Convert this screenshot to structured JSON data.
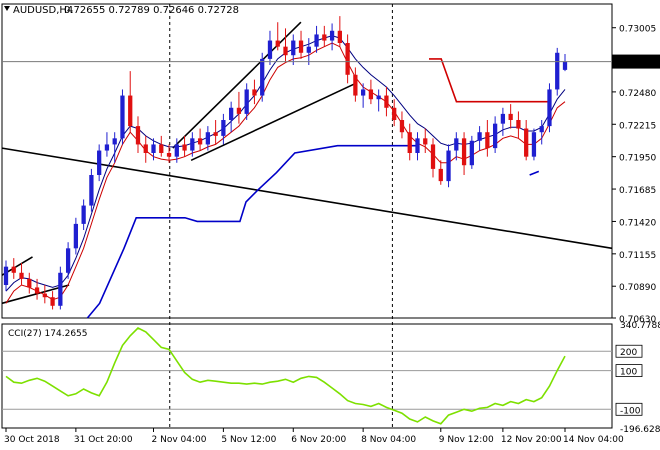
{
  "header": {
    "symbol": "AUDUSD,H4",
    "ohlc": "0.72655 0.72789 0.72646 0.72728"
  },
  "colors": {
    "bull": "#1f1fd0",
    "bear": "#e01010",
    "ma_fast": "#cc0000",
    "ma_slow": "#000080",
    "blue_line": "#0000c8",
    "red_step": "#d00000",
    "trend": "#000000",
    "cci": "#7de000",
    "price_tag_bg": "#000000",
    "price_tag_fg": "#ffffff"
  },
  "chart_data": [
    {
      "type": "candlestick",
      "ylim": [
        0.7063,
        0.7315
      ],
      "y_ticks": [
        "0.73005",
        "0.72480",
        "0.72215",
        "0.71950",
        "0.71685",
        "0.71420",
        "0.71155",
        "0.70890",
        "0.70630"
      ],
      "current_price": "0.72728",
      "current_value": 0.72728,
      "x_ticks": [
        "30 Oct 2018",
        "31 Oct 20:00",
        "2 Nov 04:00",
        "5 Nov 12:00",
        "6 Nov 20:00",
        "8 Nov 04:00",
        "9 Nov 12:00",
        "12 Nov 20:00",
        "14 Nov 04:00"
      ],
      "candles": [
        [
          0.709,
          0.711,
          0.7085,
          0.7105
        ],
        [
          0.7105,
          0.7112,
          0.7095,
          0.71
        ],
        [
          0.71,
          0.7108,
          0.709,
          0.7095
        ],
        [
          0.7095,
          0.71,
          0.7083,
          0.7088
        ],
        [
          0.7088,
          0.7095,
          0.7078,
          0.7083
        ],
        [
          0.7083,
          0.709,
          0.7075,
          0.708
        ],
        [
          0.708,
          0.7085,
          0.707,
          0.7073
        ],
        [
          0.7073,
          0.7105,
          0.707,
          0.71
        ],
        [
          0.71,
          0.7125,
          0.7095,
          0.712
        ],
        [
          0.712,
          0.7145,
          0.7115,
          0.714
        ],
        [
          0.714,
          0.716,
          0.7135,
          0.7155
        ],
        [
          0.7155,
          0.7185,
          0.715,
          0.718
        ],
        [
          0.718,
          0.7205,
          0.7175,
          0.72
        ],
        [
          0.72,
          0.7215,
          0.7195,
          0.7205
        ],
        [
          0.7205,
          0.7215,
          0.719,
          0.721
        ],
        [
          0.721,
          0.725,
          0.7205,
          0.7245
        ],
        [
          0.7245,
          0.7265,
          0.7215,
          0.722
        ],
        [
          0.722,
          0.7228,
          0.7198,
          0.7205
        ],
        [
          0.7205,
          0.7212,
          0.719,
          0.7198
        ],
        [
          0.7198,
          0.721,
          0.7192,
          0.7205
        ],
        [
          0.7205,
          0.7212,
          0.7195,
          0.7198
        ],
        [
          0.7198,
          0.7205,
          0.719,
          0.7195
        ],
        [
          0.7195,
          0.721,
          0.719,
          0.7205
        ],
        [
          0.7205,
          0.7212,
          0.7195,
          0.72
        ],
        [
          0.72,
          0.7215,
          0.7195,
          0.721
        ],
        [
          0.721,
          0.7218,
          0.72,
          0.7205
        ],
        [
          0.7205,
          0.722,
          0.72,
          0.7215
        ],
        [
          0.7215,
          0.7225,
          0.7205,
          0.7212
        ],
        [
          0.7212,
          0.723,
          0.7205,
          0.7225
        ],
        [
          0.7225,
          0.724,
          0.7215,
          0.7235
        ],
        [
          0.7235,
          0.7248,
          0.7222,
          0.723
        ],
        [
          0.723,
          0.7255,
          0.7225,
          0.725
        ],
        [
          0.725,
          0.7258,
          0.7238,
          0.7245
        ],
        [
          0.7245,
          0.728,
          0.724,
          0.7275
        ],
        [
          0.7275,
          0.7298,
          0.727,
          0.729
        ],
        [
          0.729,
          0.7305,
          0.7282,
          0.7285
        ],
        [
          0.7285,
          0.73,
          0.7272,
          0.7278
        ],
        [
          0.7278,
          0.7295,
          0.727,
          0.729
        ],
        [
          0.729,
          0.7298,
          0.7275,
          0.728
        ],
        [
          0.728,
          0.7292,
          0.727,
          0.7285
        ],
        [
          0.7285,
          0.7302,
          0.728,
          0.7295
        ],
        [
          0.7295,
          0.7302,
          0.7285,
          0.729
        ],
        [
          0.729,
          0.7304,
          0.7282,
          0.7298
        ],
        [
          0.7298,
          0.731,
          0.7285,
          0.7288
        ],
        [
          0.7288,
          0.7295,
          0.7255,
          0.7262
        ],
        [
          0.7262,
          0.7268,
          0.724,
          0.7245
        ],
        [
          0.7245,
          0.7255,
          0.7235,
          0.725
        ],
        [
          0.725,
          0.7258,
          0.7238,
          0.7242
        ],
        [
          0.7242,
          0.725,
          0.7232,
          0.7245
        ],
        [
          0.7245,
          0.7252,
          0.7228,
          0.7235
        ],
        [
          0.7235,
          0.7242,
          0.722,
          0.7225
        ],
        [
          0.7225,
          0.7232,
          0.721,
          0.7215
        ],
        [
          0.7215,
          0.7222,
          0.7192,
          0.7198
        ],
        [
          0.7198,
          0.7215,
          0.7192,
          0.721
        ],
        [
          0.721,
          0.7218,
          0.7198,
          0.7205
        ],
        [
          0.7205,
          0.721,
          0.7178,
          0.7185
        ],
        [
          0.7185,
          0.7192,
          0.7172,
          0.7175
        ],
        [
          0.7175,
          0.7205,
          0.717,
          0.72
        ],
        [
          0.72,
          0.7215,
          0.7192,
          0.721
        ],
        [
          0.721,
          0.7215,
          0.718,
          0.7188
        ],
        [
          0.7188,
          0.7212,
          0.7185,
          0.7208
        ],
        [
          0.7208,
          0.722,
          0.72,
          0.7215
        ],
        [
          0.7215,
          0.7225,
          0.7195,
          0.7202
        ],
        [
          0.7202,
          0.7228,
          0.7198,
          0.7222
        ],
        [
          0.7222,
          0.7235,
          0.7212,
          0.723
        ],
        [
          0.723,
          0.7238,
          0.7218,
          0.7225
        ],
        [
          0.7225,
          0.7232,
          0.721,
          0.7218
        ],
        [
          0.7218,
          0.7225,
          0.7192,
          0.7195
        ],
        [
          0.7195,
          0.7218,
          0.7192,
          0.7215
        ],
        [
          0.7215,
          0.7225,
          0.7205,
          0.722
        ],
        [
          0.722,
          0.7255,
          0.7215,
          0.725
        ],
        [
          0.725,
          0.7284,
          0.7245,
          0.728
        ],
        [
          0.7266,
          0.7279,
          0.7265,
          0.7273
        ]
      ],
      "ma_fast": [
        0.7075,
        0.7085,
        0.709,
        0.7088,
        0.7085,
        0.7082,
        0.7078,
        0.708,
        0.709,
        0.7105,
        0.712,
        0.714,
        0.716,
        0.7178,
        0.719,
        0.7205,
        0.7215,
        0.7208,
        0.72,
        0.7195,
        0.7193,
        0.7192,
        0.7193,
        0.7195,
        0.7198,
        0.72,
        0.7203,
        0.7205,
        0.721,
        0.7215,
        0.722,
        0.7228,
        0.7235,
        0.7245,
        0.7258,
        0.7268,
        0.7272,
        0.7275,
        0.7276,
        0.7278,
        0.7282,
        0.7285,
        0.7288,
        0.7285,
        0.7272,
        0.726,
        0.7252,
        0.7248,
        0.7244,
        0.724,
        0.7232,
        0.7222,
        0.7212,
        0.7206,
        0.7203,
        0.7197,
        0.719,
        0.719,
        0.7195,
        0.7193,
        0.7196,
        0.72,
        0.7202,
        0.7205,
        0.721,
        0.7212,
        0.721,
        0.7205,
        0.7205,
        0.721,
        0.7222,
        0.7235,
        0.724
      ],
      "ma_slow": [
        0.7085,
        0.7092,
        0.7096,
        0.7095,
        0.7092,
        0.709,
        0.7088,
        0.709,
        0.7098,
        0.7112,
        0.7128,
        0.7148,
        0.7168,
        0.7185,
        0.7198,
        0.7212,
        0.722,
        0.7218,
        0.7212,
        0.7208,
        0.7205,
        0.7203,
        0.7203,
        0.7204,
        0.7206,
        0.7208,
        0.7211,
        0.7214,
        0.7218,
        0.7224,
        0.723,
        0.7238,
        0.7245,
        0.7255,
        0.7266,
        0.7275,
        0.728,
        0.7283,
        0.7285,
        0.7287,
        0.729,
        0.7292,
        0.7294,
        0.7292,
        0.7284,
        0.7275,
        0.7268,
        0.7262,
        0.7257,
        0.7252,
        0.7245,
        0.7237,
        0.7229,
        0.7222,
        0.7218,
        0.7212,
        0.7206,
        0.7204,
        0.7206,
        0.7205,
        0.7206,
        0.7209,
        0.7211,
        0.7213,
        0.7217,
        0.7219,
        0.7219,
        0.7216,
        0.7216,
        0.7219,
        0.723,
        0.7242,
        0.725
      ],
      "blue_step": [
        [
          0.7063,
          0.7063
        ],
        [
          0.7075,
          0.7075
        ],
        [
          0.712,
          0.712
        ],
        [
          0.7145,
          0.7145
        ],
        [
          0.7145,
          0.7145
        ],
        [
          0.7142,
          0.7142
        ],
        [
          0.7142,
          0.7142
        ],
        [
          0.7142,
          0.7142
        ],
        [
          0.7142,
          0.7142
        ],
        [
          0.7142,
          0.7142
        ],
        [
          0.7158,
          0.7158
        ],
        [
          0.7168,
          0.7168
        ],
        [
          0.7182,
          0.7182
        ],
        [
          0.7198,
          0.7198
        ],
        [
          0.7204,
          0.7204
        ],
        [
          0.7204,
          0.7204
        ],
        [
          0.7204,
          0.7204
        ],
        [
          0.7204,
          0.7204
        ],
        [
          0.7204,
          0.7204
        ],
        [
          0.7204,
          0.7204
        ]
      ],
      "red_step": [
        0.7275,
        0.724,
        0.724
      ],
      "blue_end": [
        0.718,
        0.7183
      ],
      "trend_lines": [
        [
          [
            0.7098,
            0.7113
          ]
        ],
        [
          [
            0.7075,
            0.709
          ]
        ],
        [
          [
            0.7202,
            0.7305
          ]
        ],
        [
          [
            0.7192,
            0.7255
          ]
        ],
        [
          [
            0.7202,
            0.712
          ]
        ]
      ]
    },
    {
      "type": "line",
      "label": "CCI(27) 174.2655",
      "ylim": [
        -196.6284,
        340.7788
      ],
      "y_ticks": [
        "340.7788",
        "200",
        "100",
        "-100",
        "-196.6284"
      ],
      "levels": [
        200,
        100,
        -100
      ],
      "top_label": "340.7788",
      "bottom_label": "-196.6284",
      "values": [
        70,
        40,
        35,
        50,
        60,
        45,
        20,
        -5,
        -30,
        -20,
        5,
        -15,
        -30,
        40,
        140,
        230,
        280,
        320,
        300,
        260,
        220,
        210,
        150,
        90,
        55,
        40,
        50,
        45,
        40,
        35,
        35,
        30,
        35,
        30,
        40,
        45,
        55,
        40,
        60,
        70,
        65,
        40,
        10,
        -20,
        -55,
        -70,
        -75,
        -85,
        -70,
        -90,
        -105,
        -120,
        -150,
        -165,
        -140,
        -160,
        -175,
        -130,
        -115,
        -100,
        -110,
        -95,
        -90,
        -70,
        -80,
        -60,
        -70,
        -50,
        -60,
        -40,
        20,
        100,
        175
      ]
    }
  ]
}
